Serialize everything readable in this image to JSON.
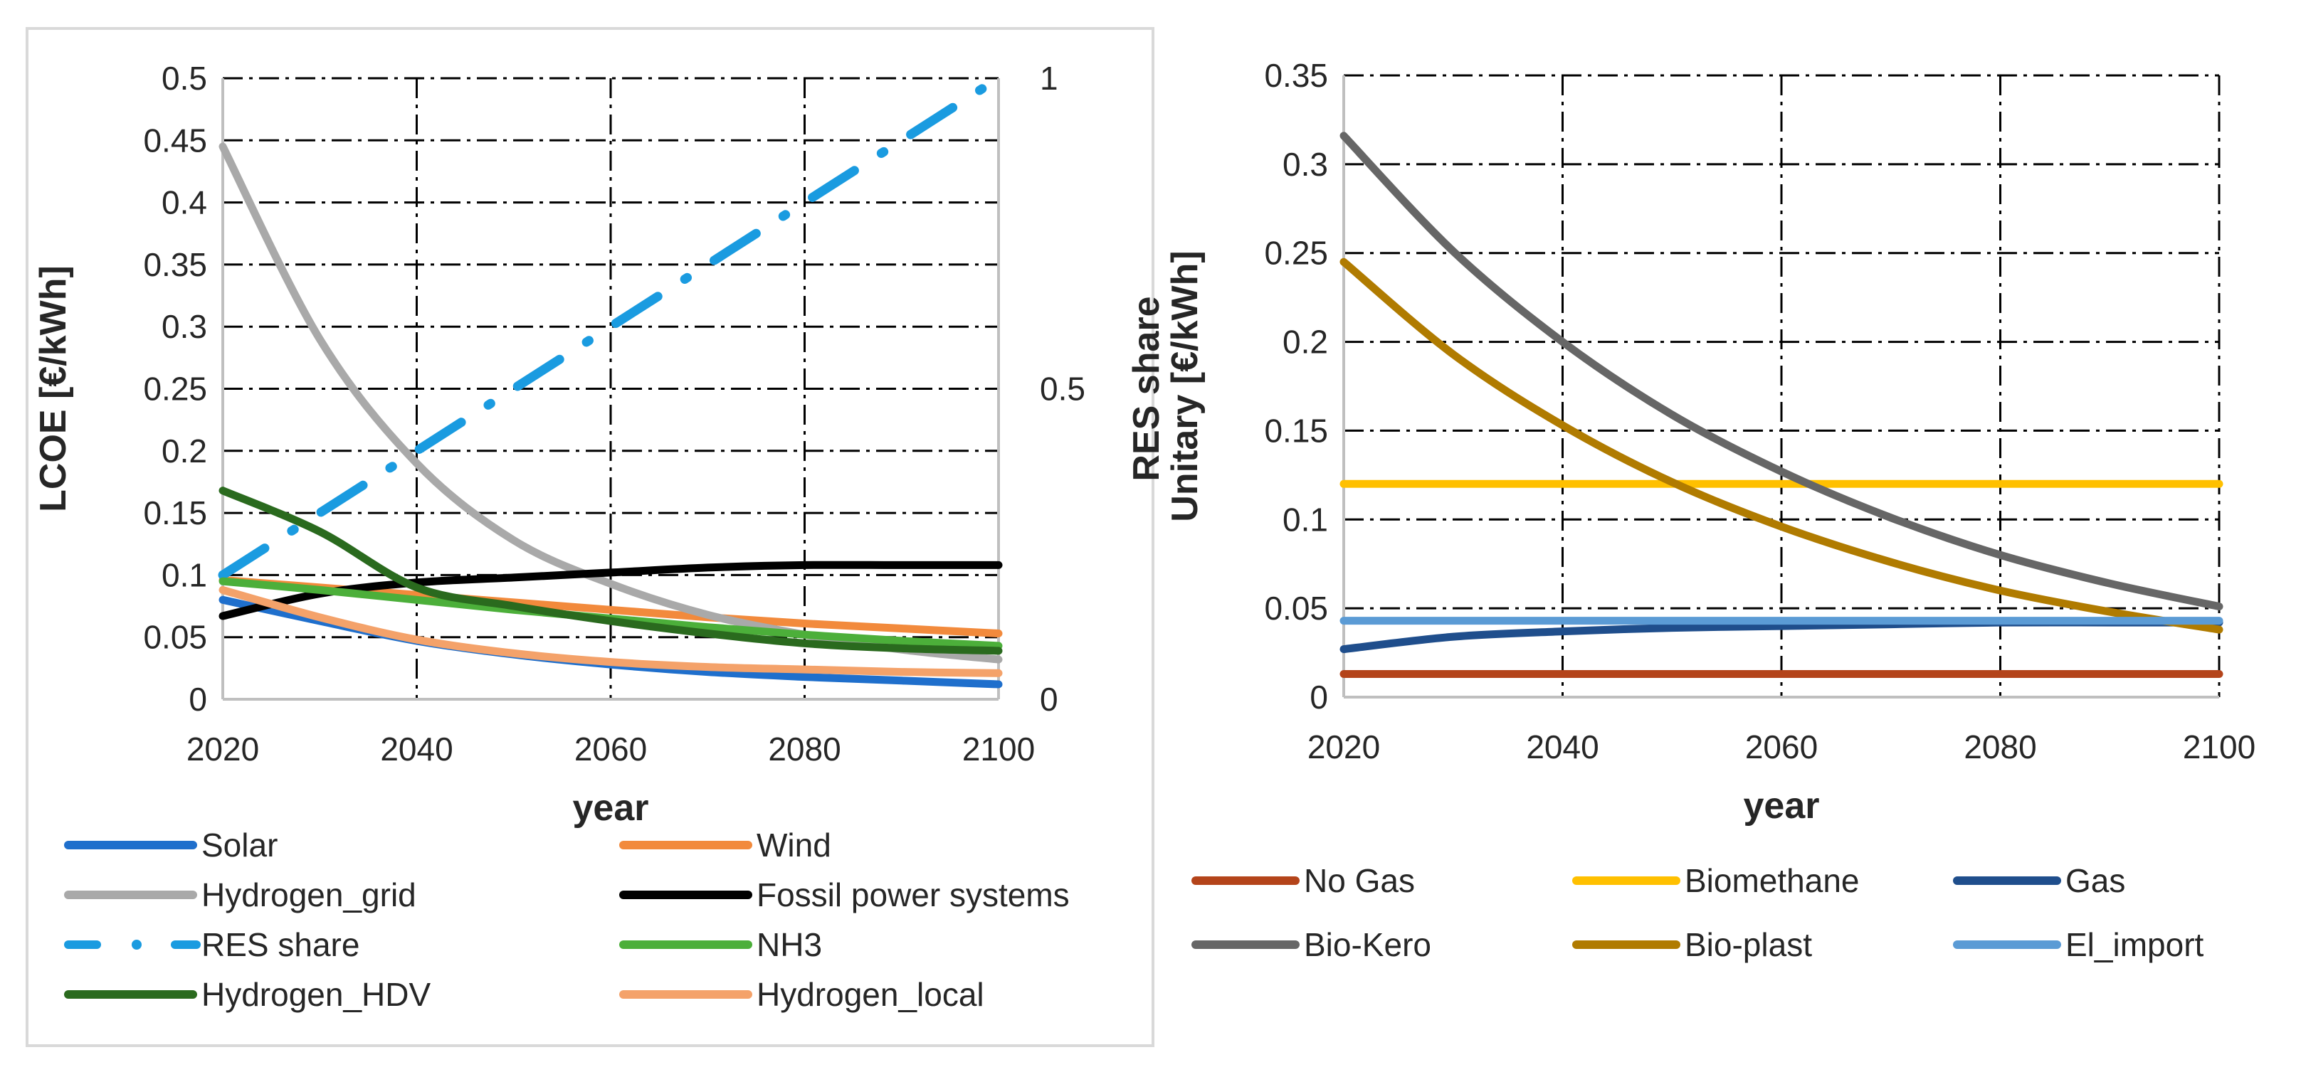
{
  "chart_data": [
    {
      "type": "line",
      "xlabel": "year",
      "ylabel": "LCOE [€/kWh]",
      "y2label": "RES share",
      "x": [
        2020,
        2030,
        2040,
        2050,
        2060,
        2070,
        2080,
        2090,
        2100
      ],
      "xticks": [
        "2020",
        "2040",
        "2060",
        "2080",
        "2100"
      ],
      "yticks": [
        "0",
        "0.05",
        "0.1",
        "0.15",
        "0.2",
        "0.25",
        "0.3",
        "0.35",
        "0.4",
        "0.45",
        "0.5"
      ],
      "y2ticks": [
        "0",
        "0.5",
        "1"
      ],
      "xlim": [
        2020,
        2100
      ],
      "ylim": [
        0,
        0.5
      ],
      "y2lim": [
        0,
        1
      ],
      "grid": "dash-dot",
      "legend": "bottom",
      "series": [
        {
          "name": "Solar",
          "color": "#1f6fcc",
          "style": "solid",
          "axis": "left",
          "values": [
            0.08,
            0.063,
            0.047,
            0.036,
            0.028,
            0.022,
            0.018,
            0.015,
            0.012
          ]
        },
        {
          "name": "Wind",
          "color": "#f28a3c",
          "style": "solid",
          "axis": "left",
          "values": [
            0.096,
            0.09,
            0.084,
            0.078,
            0.072,
            0.066,
            0.061,
            0.057,
            0.053
          ]
        },
        {
          "name": "Hydrogen_grid",
          "color": "#a9a9a9",
          "style": "solid",
          "axis": "left",
          "values": [
            0.445,
            0.29,
            0.19,
            0.128,
            0.093,
            0.068,
            0.052,
            0.04,
            0.032
          ]
        },
        {
          "name": "Fossil power systems",
          "color": "#000000",
          "style": "solid",
          "axis": "left",
          "values": [
            0.067,
            0.085,
            0.094,
            0.098,
            0.102,
            0.106,
            0.108,
            0.108,
            0.108
          ]
        },
        {
          "name": "RES share",
          "color": "#1a9be0",
          "style": "dashdot",
          "axis": "right",
          "values": [
            0.2,
            0.3,
            0.4,
            0.5,
            0.6,
            0.7,
            0.8,
            0.9,
            1.0
          ]
        },
        {
          "name": "NH3",
          "color": "#4caf3a",
          "style": "solid",
          "axis": "left",
          "values": [
            0.095,
            0.088,
            0.08,
            0.072,
            0.065,
            0.058,
            0.052,
            0.047,
            0.043
          ]
        },
        {
          "name": "Hydrogen_HDV",
          "color": "#2a6a1e",
          "style": "solid",
          "axis": "left",
          "values": [
            0.168,
            0.135,
            0.09,
            0.075,
            0.063,
            0.053,
            0.045,
            0.041,
            0.039
          ]
        },
        {
          "name": "Hydrogen_local",
          "color": "#f4a26a",
          "style": "solid",
          "axis": "left",
          "values": [
            0.088,
            0.066,
            0.048,
            0.037,
            0.03,
            0.026,
            0.024,
            0.022,
            0.021
          ]
        }
      ]
    },
    {
      "type": "line",
      "xlabel": "year",
      "ylabel": "Unitary [€/kWh]",
      "x": [
        2020,
        2030,
        2040,
        2050,
        2060,
        2070,
        2080,
        2090,
        2100
      ],
      "xticks": [
        "2020",
        "2040",
        "2060",
        "2080",
        "2100"
      ],
      "yticks": [
        "0",
        "0.05",
        "0.1",
        "0.15",
        "0.2",
        "0.25",
        "0.3",
        "0.35"
      ],
      "xlim": [
        2020,
        2100
      ],
      "ylim": [
        0,
        0.35
      ],
      "grid": "dash-dot",
      "legend": "bottom",
      "series": [
        {
          "name": "No Gas",
          "color": "#b4441a",
          "style": "solid",
          "values": [
            0.013,
            0.013,
            0.013,
            0.013,
            0.013,
            0.013,
            0.013,
            0.013,
            0.013
          ]
        },
        {
          "name": "Biomethane",
          "color": "#ffc000",
          "style": "solid",
          "values": [
            0.12,
            0.12,
            0.12,
            0.12,
            0.12,
            0.12,
            0.12,
            0.12,
            0.12
          ]
        },
        {
          "name": "Gas",
          "color": "#1f4e8c",
          "style": "solid",
          "values": [
            0.027,
            0.034,
            0.037,
            0.039,
            0.04,
            0.041,
            0.042,
            0.042,
            0.042
          ]
        },
        {
          "name": "Bio-Kero",
          "color": "#666666",
          "style": "solid",
          "values": [
            0.316,
            0.251,
            0.2,
            0.159,
            0.127,
            0.101,
            0.08,
            0.064,
            0.051
          ]
        },
        {
          "name": "Bio-plast",
          "color": "#b07b00",
          "style": "solid",
          "values": [
            0.245,
            0.193,
            0.153,
            0.121,
            0.096,
            0.076,
            0.06,
            0.048,
            0.038
          ]
        },
        {
          "name": "El_import",
          "color": "#5b9bd5",
          "style": "solid",
          "values": [
            0.043,
            0.043,
            0.043,
            0.043,
            0.043,
            0.043,
            0.043,
            0.043,
            0.043
          ]
        }
      ]
    }
  ]
}
